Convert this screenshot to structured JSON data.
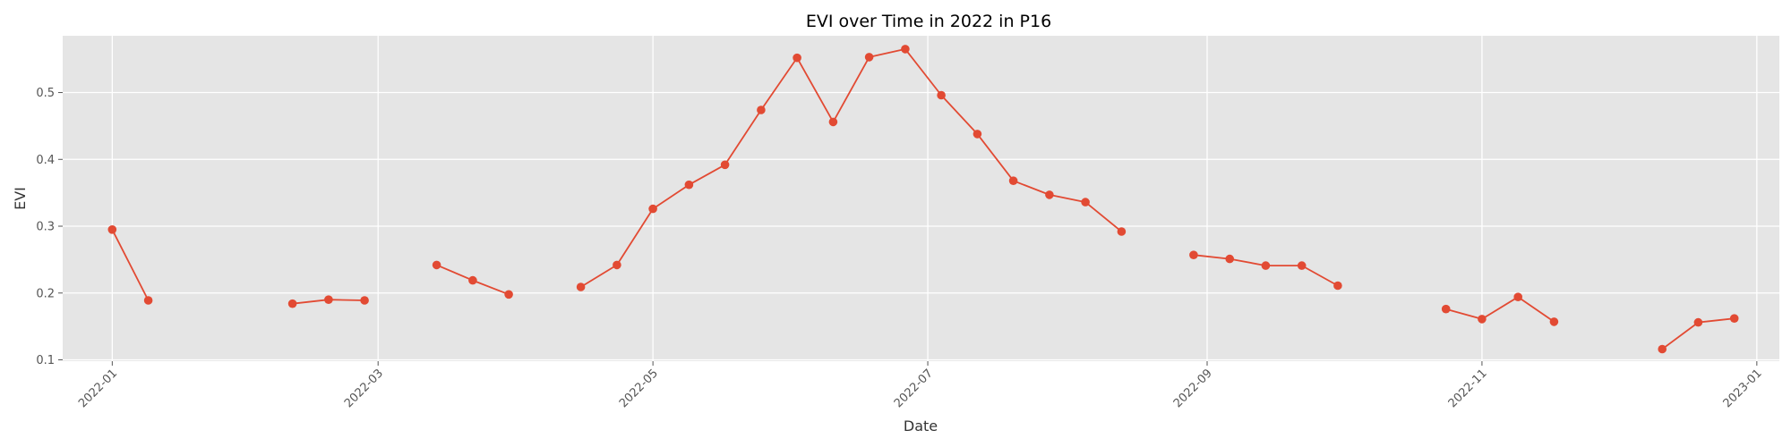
{
  "chart_data": {
    "type": "line",
    "title": "EVI over Time in 2022 in P16",
    "xlabel": "Date",
    "ylabel": "EVI",
    "xlim": [
      "2021-12-21",
      "2023-01-06"
    ],
    "ylim": [
      0.098,
      0.585
    ],
    "x_ticks": [
      {
        "date": "2022-01-01",
        "label": "2022-01"
      },
      {
        "date": "2022-03-01",
        "label": "2022-03"
      },
      {
        "date": "2022-05-01",
        "label": "2022-05"
      },
      {
        "date": "2022-07-01",
        "label": "2022-07"
      },
      {
        "date": "2022-09-01",
        "label": "2022-09"
      },
      {
        "date": "2022-11-01",
        "label": "2022-11"
      },
      {
        "date": "2023-01-01",
        "label": "2023-01"
      }
    ],
    "y_ticks": [
      0.1,
      0.2,
      0.3,
      0.4,
      0.5
    ],
    "y_tick_labels": [
      "0.1",
      "0.2",
      "0.3",
      "0.4",
      "0.5"
    ],
    "grid": true,
    "color": "#E24A33",
    "background": "#E5E5E5",
    "series": [
      {
        "segments": [
          [
            [
              "2022-01-01",
              0.295
            ],
            [
              "2022-01-09",
              0.189
            ]
          ],
          [
            [
              "2022-02-10",
              0.184
            ],
            [
              "2022-02-18",
              0.19
            ],
            [
              "2022-02-26",
              0.189
            ]
          ],
          [
            [
              "2022-03-14",
              0.242
            ],
            [
              "2022-03-22",
              0.219
            ],
            [
              "2022-03-30",
              0.198
            ]
          ],
          [
            [
              "2022-04-15",
              0.209
            ],
            [
              "2022-04-23",
              0.242
            ],
            [
              "2022-05-01",
              0.326
            ],
            [
              "2022-05-09",
              0.362
            ],
            [
              "2022-05-17",
              0.392
            ],
            [
              "2022-05-25",
              0.474
            ],
            [
              "2022-06-02",
              0.552
            ],
            [
              "2022-06-10",
              0.456
            ],
            [
              "2022-06-18",
              0.553
            ],
            [
              "2022-06-26",
              0.565
            ],
            [
              "2022-07-04",
              0.496
            ],
            [
              "2022-07-12",
              0.438
            ],
            [
              "2022-07-20",
              0.368
            ],
            [
              "2022-07-28",
              0.347
            ],
            [
              "2022-08-05",
              0.336
            ],
            [
              "2022-08-13",
              0.292
            ]
          ],
          [
            [
              "2022-08-29",
              0.257
            ],
            [
              "2022-09-06",
              0.251
            ],
            [
              "2022-09-14",
              0.241
            ],
            [
              "2022-09-22",
              0.241
            ],
            [
              "2022-09-30",
              0.211
            ]
          ],
          [
            [
              "2022-10-24",
              0.176
            ],
            [
              "2022-11-01",
              0.161
            ],
            [
              "2022-11-09",
              0.194
            ],
            [
              "2022-11-17",
              0.157
            ]
          ],
          [
            [
              "2022-12-11",
              0.116
            ],
            [
              "2022-12-19",
              0.156
            ],
            [
              "2022-12-27",
              0.162
            ]
          ]
        ]
      }
    ]
  }
}
